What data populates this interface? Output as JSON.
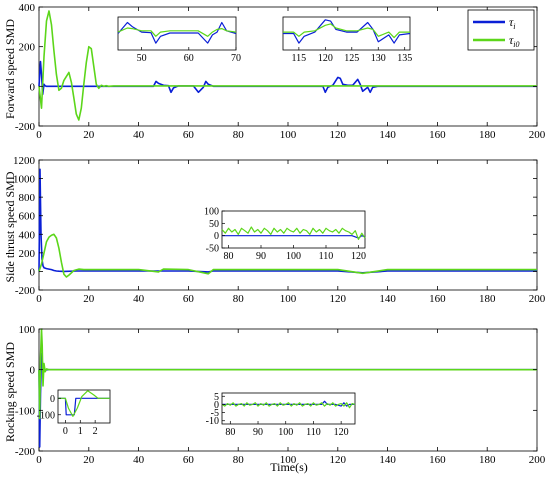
{
  "figure": {
    "xlabel": "Time(s)"
  },
  "chart_data": [
    {
      "type": "line",
      "ylabel": "Forward speed SMD",
      "xlim": [
        0,
        200
      ],
      "ylim": [
        -200,
        400
      ],
      "xticks": [
        0,
        20,
        40,
        60,
        80,
        100,
        120,
        140,
        160,
        180,
        200
      ],
      "yticks": [
        -200,
        0,
        200,
        400
      ],
      "legend": {
        "position": "top-right",
        "entries": [
          {
            "main": "τ",
            "sub": "i",
            "color": "#0a1fd6"
          },
          {
            "main": "τ",
            "sub": "i0",
            "color": "#5cd61a"
          }
        ]
      },
      "series": [
        {
          "color": "#0a1fd6",
          "x": [
            0,
            0.6,
            1,
            1.5,
            2,
            2.5,
            3,
            46,
            47,
            48,
            50,
            52,
            53,
            54,
            56,
            58,
            60,
            62,
            64,
            66,
            67,
            68,
            70,
            110,
            114,
            115,
            116,
            118,
            120,
            121,
            122,
            124,
            126,
            128,
            129,
            130,
            132,
            133,
            134,
            136,
            200
          ],
          "y": [
            0,
            125,
            60,
            -40,
            10,
            2,
            0,
            0,
            25,
            15,
            5,
            3,
            -30,
            -8,
            2,
            2,
            2,
            2,
            -30,
            -5,
            25,
            10,
            0,
            0,
            0,
            -30,
            -5,
            5,
            45,
            40,
            10,
            5,
            5,
            35,
            10,
            -25,
            -5,
            -30,
            -5,
            0,
            0
          ]
        },
        {
          "color": "#5cd61a",
          "x": [
            0,
            1,
            2,
            3,
            4,
            5,
            6,
            7,
            8,
            9,
            10,
            11,
            12,
            13,
            14,
            15,
            16,
            17,
            18,
            19,
            20,
            21,
            22,
            23,
            24,
            25,
            26,
            27,
            28,
            30,
            200
          ],
          "y": [
            0,
            -110,
            150,
            330,
            380,
            310,
            180,
            60,
            -20,
            -10,
            30,
            50,
            70,
            20,
            -60,
            -140,
            -170,
            -110,
            10,
            120,
            200,
            190,
            100,
            10,
            -10,
            5,
            0,
            3,
            0,
            2,
            2
          ]
        }
      ],
      "insets": [
        {
          "xlim": [
            45,
            70
          ],
          "ylim": [
            -60,
            60
          ],
          "xticks": [
            50,
            60,
            70
          ],
          "series": [
            {
              "color": "#0a1fd6",
              "x": [
                45,
                47,
                48,
                50,
                52,
                53,
                54,
                56,
                58,
                60,
                62,
                64,
                65,
                66,
                67,
                68,
                70
              ],
              "y": [
                0,
                40,
                25,
                5,
                3,
                -35,
                -10,
                2,
                2,
                2,
                2,
                -35,
                -5,
                5,
                40,
                10,
                0
              ]
            },
            {
              "color": "#5cd61a",
              "x": [
                45,
                47,
                48,
                50,
                52,
                53,
                54,
                56,
                58,
                60,
                62,
                64,
                65,
                66,
                67,
                68,
                70
              ],
              "y": [
                5,
                20,
                18,
                10,
                10,
                -10,
                5,
                10,
                10,
                10,
                10,
                -10,
                5,
                15,
                18,
                10,
                5
              ]
            }
          ]
        },
        {
          "xlim": [
            112,
            136
          ],
          "ylim": [
            -60,
            60
          ],
          "xticks": [
            115,
            120,
            125,
            130,
            135
          ],
          "series": [
            {
              "color": "#0a1fd6",
              "x": [
                112,
                114,
                115,
                116,
                118,
                120,
                121,
                122,
                124,
                126,
                128,
                129,
                130,
                132,
                133,
                134,
                136
              ],
              "y": [
                0,
                0,
                -35,
                -10,
                5,
                50,
                45,
                15,
                5,
                5,
                40,
                15,
                -30,
                -5,
                -35,
                -5,
                0
              ]
            },
            {
              "color": "#5cd61a",
              "x": [
                112,
                114,
                115,
                116,
                118,
                120,
                121,
                122,
                124,
                126,
                128,
                129,
                130,
                132,
                133,
                134,
                136
              ],
              "y": [
                5,
                5,
                -10,
                5,
                10,
                30,
                35,
                20,
                10,
                10,
                20,
                15,
                -10,
                5,
                -15,
                5,
                5
              ]
            }
          ]
        }
      ]
    },
    {
      "type": "line",
      "ylabel": "Side thrust speed SMD",
      "xlim": [
        0,
        200
      ],
      "ylim": [
        -200,
        1200
      ],
      "xticks": [
        0,
        20,
        40,
        60,
        80,
        100,
        120,
        140,
        160,
        180,
        200
      ],
      "yticks": [
        -200,
        0,
        200,
        400,
        600,
        800,
        1000,
        1200
      ],
      "series": [
        {
          "color": "#0a1fd6",
          "x": [
            0,
            0.4,
            0.8,
            1.2,
            1.6,
            2,
            3,
            4,
            5,
            6,
            7,
            8,
            10,
            15,
            20,
            30,
            40,
            50,
            60,
            68,
            70,
            80,
            90,
            100,
            110,
            120,
            130,
            140,
            150,
            160,
            170,
            180,
            190,
            200
          ],
          "y": [
            0,
            1100,
            400,
            130,
            60,
            40,
            30,
            25,
            20,
            10,
            5,
            2,
            0,
            5,
            5,
            5,
            5,
            5,
            5,
            -5,
            5,
            5,
            5,
            5,
            5,
            5,
            -15,
            5,
            5,
            5,
            5,
            5,
            5,
            5
          ]
        },
        {
          "color": "#5cd61a",
          "x": [
            0,
            1,
            2,
            3,
            4,
            5,
            6,
            7,
            8,
            9,
            10,
            11,
            12,
            14,
            16,
            18,
            20,
            30,
            40,
            48,
            50,
            60,
            68,
            70,
            80,
            90,
            100,
            110,
            120,
            130,
            140,
            150,
            160,
            170,
            180,
            190,
            200
          ],
          "y": [
            0,
            80,
            200,
            320,
            370,
            390,
            400,
            360,
            250,
            100,
            -30,
            -60,
            -40,
            10,
            25,
            20,
            20,
            20,
            20,
            -5,
            25,
            20,
            -25,
            20,
            20,
            20,
            20,
            20,
            20,
            -20,
            20,
            20,
            20,
            20,
            20,
            20,
            20
          ]
        }
      ],
      "insets": [
        {
          "xlim": [
            78,
            122
          ],
          "ylim": [
            -50,
            100
          ],
          "xticks": [
            80,
            90,
            100,
            110,
            120
          ],
          "yticks": [
            -50,
            0,
            50,
            100
          ],
          "series": [
            {
              "color": "#0a1fd6",
              "x": [
                78,
                80,
                85,
                90,
                95,
                100,
                105,
                110,
                115,
                118,
                120,
                121,
                122
              ],
              "y": [
                0,
                0,
                0,
                0,
                0,
                0,
                0,
                0,
                0,
                0,
                -10,
                0,
                -5
              ]
            },
            {
              "color": "#5cd61a",
              "x": [
                78,
                79,
                80,
                81,
                82,
                83,
                84,
                85,
                86,
                87,
                88,
                89,
                90,
                91,
                92,
                93,
                94,
                95,
                96,
                97,
                98,
                99,
                100,
                101,
                102,
                103,
                104,
                105,
                106,
                107,
                108,
                109,
                110,
                111,
                112,
                113,
                114,
                115,
                116,
                117,
                118,
                119,
                120,
                121,
                122
              ],
              "y": [
                25,
                10,
                30,
                15,
                25,
                5,
                30,
                20,
                10,
                35,
                15,
                25,
                10,
                30,
                20,
                5,
                30,
                15,
                25,
                10,
                30,
                20,
                15,
                30,
                10,
                25,
                20,
                5,
                30,
                15,
                25,
                10,
                30,
                20,
                15,
                25,
                10,
                30,
                20,
                15,
                5,
                20,
                -15,
                10,
                -10
              ]
            }
          ]
        }
      ]
    },
    {
      "type": "line",
      "ylabel": "Rocking speed SMD",
      "xlim": [
        0,
        200
      ],
      "ylim": [
        -200,
        100
      ],
      "xticks": [
        0,
        20,
        40,
        60,
        80,
        100,
        120,
        140,
        160,
        180,
        200
      ],
      "yticks": [
        -200,
        -100,
        0,
        100
      ],
      "series": [
        {
          "color": "#0a1fd6",
          "x": [
            0,
            0.3,
            0.6,
            1,
            1.5,
            2,
            3,
            200
          ],
          "y": [
            0,
            -190,
            -60,
            40,
            10,
            -5,
            0,
            0
          ]
        },
        {
          "color": "#5cd61a",
          "x": [
            0,
            0.3,
            0.6,
            1,
            1.3,
            1.6,
            2,
            2.5,
            3,
            4,
            200
          ],
          "y": [
            0,
            -120,
            30,
            100,
            60,
            -40,
            15,
            -5,
            2,
            0,
            0
          ]
        }
      ],
      "insets": [
        {
          "xlim": [
            -0.5,
            3
          ],
          "ylim": [
            -150,
            50
          ],
          "xticks": [
            0,
            1,
            2
          ],
          "yticks": [
            -100,
            0
          ],
          "series": [
            {
              "color": "#0a1fd6",
              "x": [
                -0.5,
                0,
                0.05,
                0.3,
                0.6,
                0.7,
                1,
                1.5,
                2,
                2.5,
                3
              ],
              "y": [
                0,
                0,
                -100,
                -100,
                -100,
                0,
                0,
                0,
                0,
                0,
                0
              ]
            },
            {
              "color": "#5cd61a",
              "x": [
                -0.5,
                0,
                0.2,
                0.5,
                0.8,
                1.1,
                1.5,
                1.9,
                2.2,
                2.5,
                3
              ],
              "y": [
                0,
                0,
                -60,
                -110,
                -60,
                10,
                45,
                20,
                0,
                0,
                0
              ]
            }
          ]
        },
        {
          "xlim": [
            77,
            125
          ],
          "ylim": [
            -12,
            7
          ],
          "xticks": [
            80,
            90,
            100,
            110,
            120
          ],
          "yticks": [
            -10,
            -5,
            0,
            5
          ],
          "series": [
            {
              "color": "#0a1fd6",
              "x": [
                77,
                80,
                85,
                90,
                95,
                100,
                105,
                110,
                113,
                114,
                115,
                118,
                120,
                121,
                122,
                123,
                125
              ],
              "y": [
                0,
                0,
                0,
                0,
                0,
                0,
                0,
                0,
                0,
                2,
                0,
                0,
                -1,
                1,
                -1,
                0,
                0
              ]
            },
            {
              "color": "#5cd61a",
              "x": [
                77,
                78,
                79,
                80,
                81,
                82,
                83,
                84,
                85,
                86,
                87,
                88,
                89,
                90,
                91,
                92,
                93,
                94,
                95,
                96,
                97,
                98,
                99,
                100,
                101,
                102,
                103,
                104,
                105,
                106,
                107,
                108,
                109,
                110,
                111,
                112,
                113,
                114,
                115,
                116,
                117,
                118,
                119,
                120,
                121,
                122,
                123,
                124,
                125
              ],
              "y": [
                0,
                -1,
                0.5,
                -0.5,
                1,
                -1,
                0,
                0.5,
                -1,
                1,
                -0.5,
                0,
                1,
                -1,
                0.5,
                -0.5,
                1,
                -1,
                0,
                0.5,
                -1,
                1,
                -0.5,
                0,
                1,
                -1,
                0.5,
                -0.5,
                1,
                -1,
                0,
                0.5,
                -1,
                1,
                -0.5,
                0,
                1,
                -1,
                0.5,
                -0.5,
                1,
                -1,
                0,
                0.5,
                -1,
                1,
                -2,
                0.5,
                0
              ]
            }
          ]
        }
      ]
    }
  ]
}
